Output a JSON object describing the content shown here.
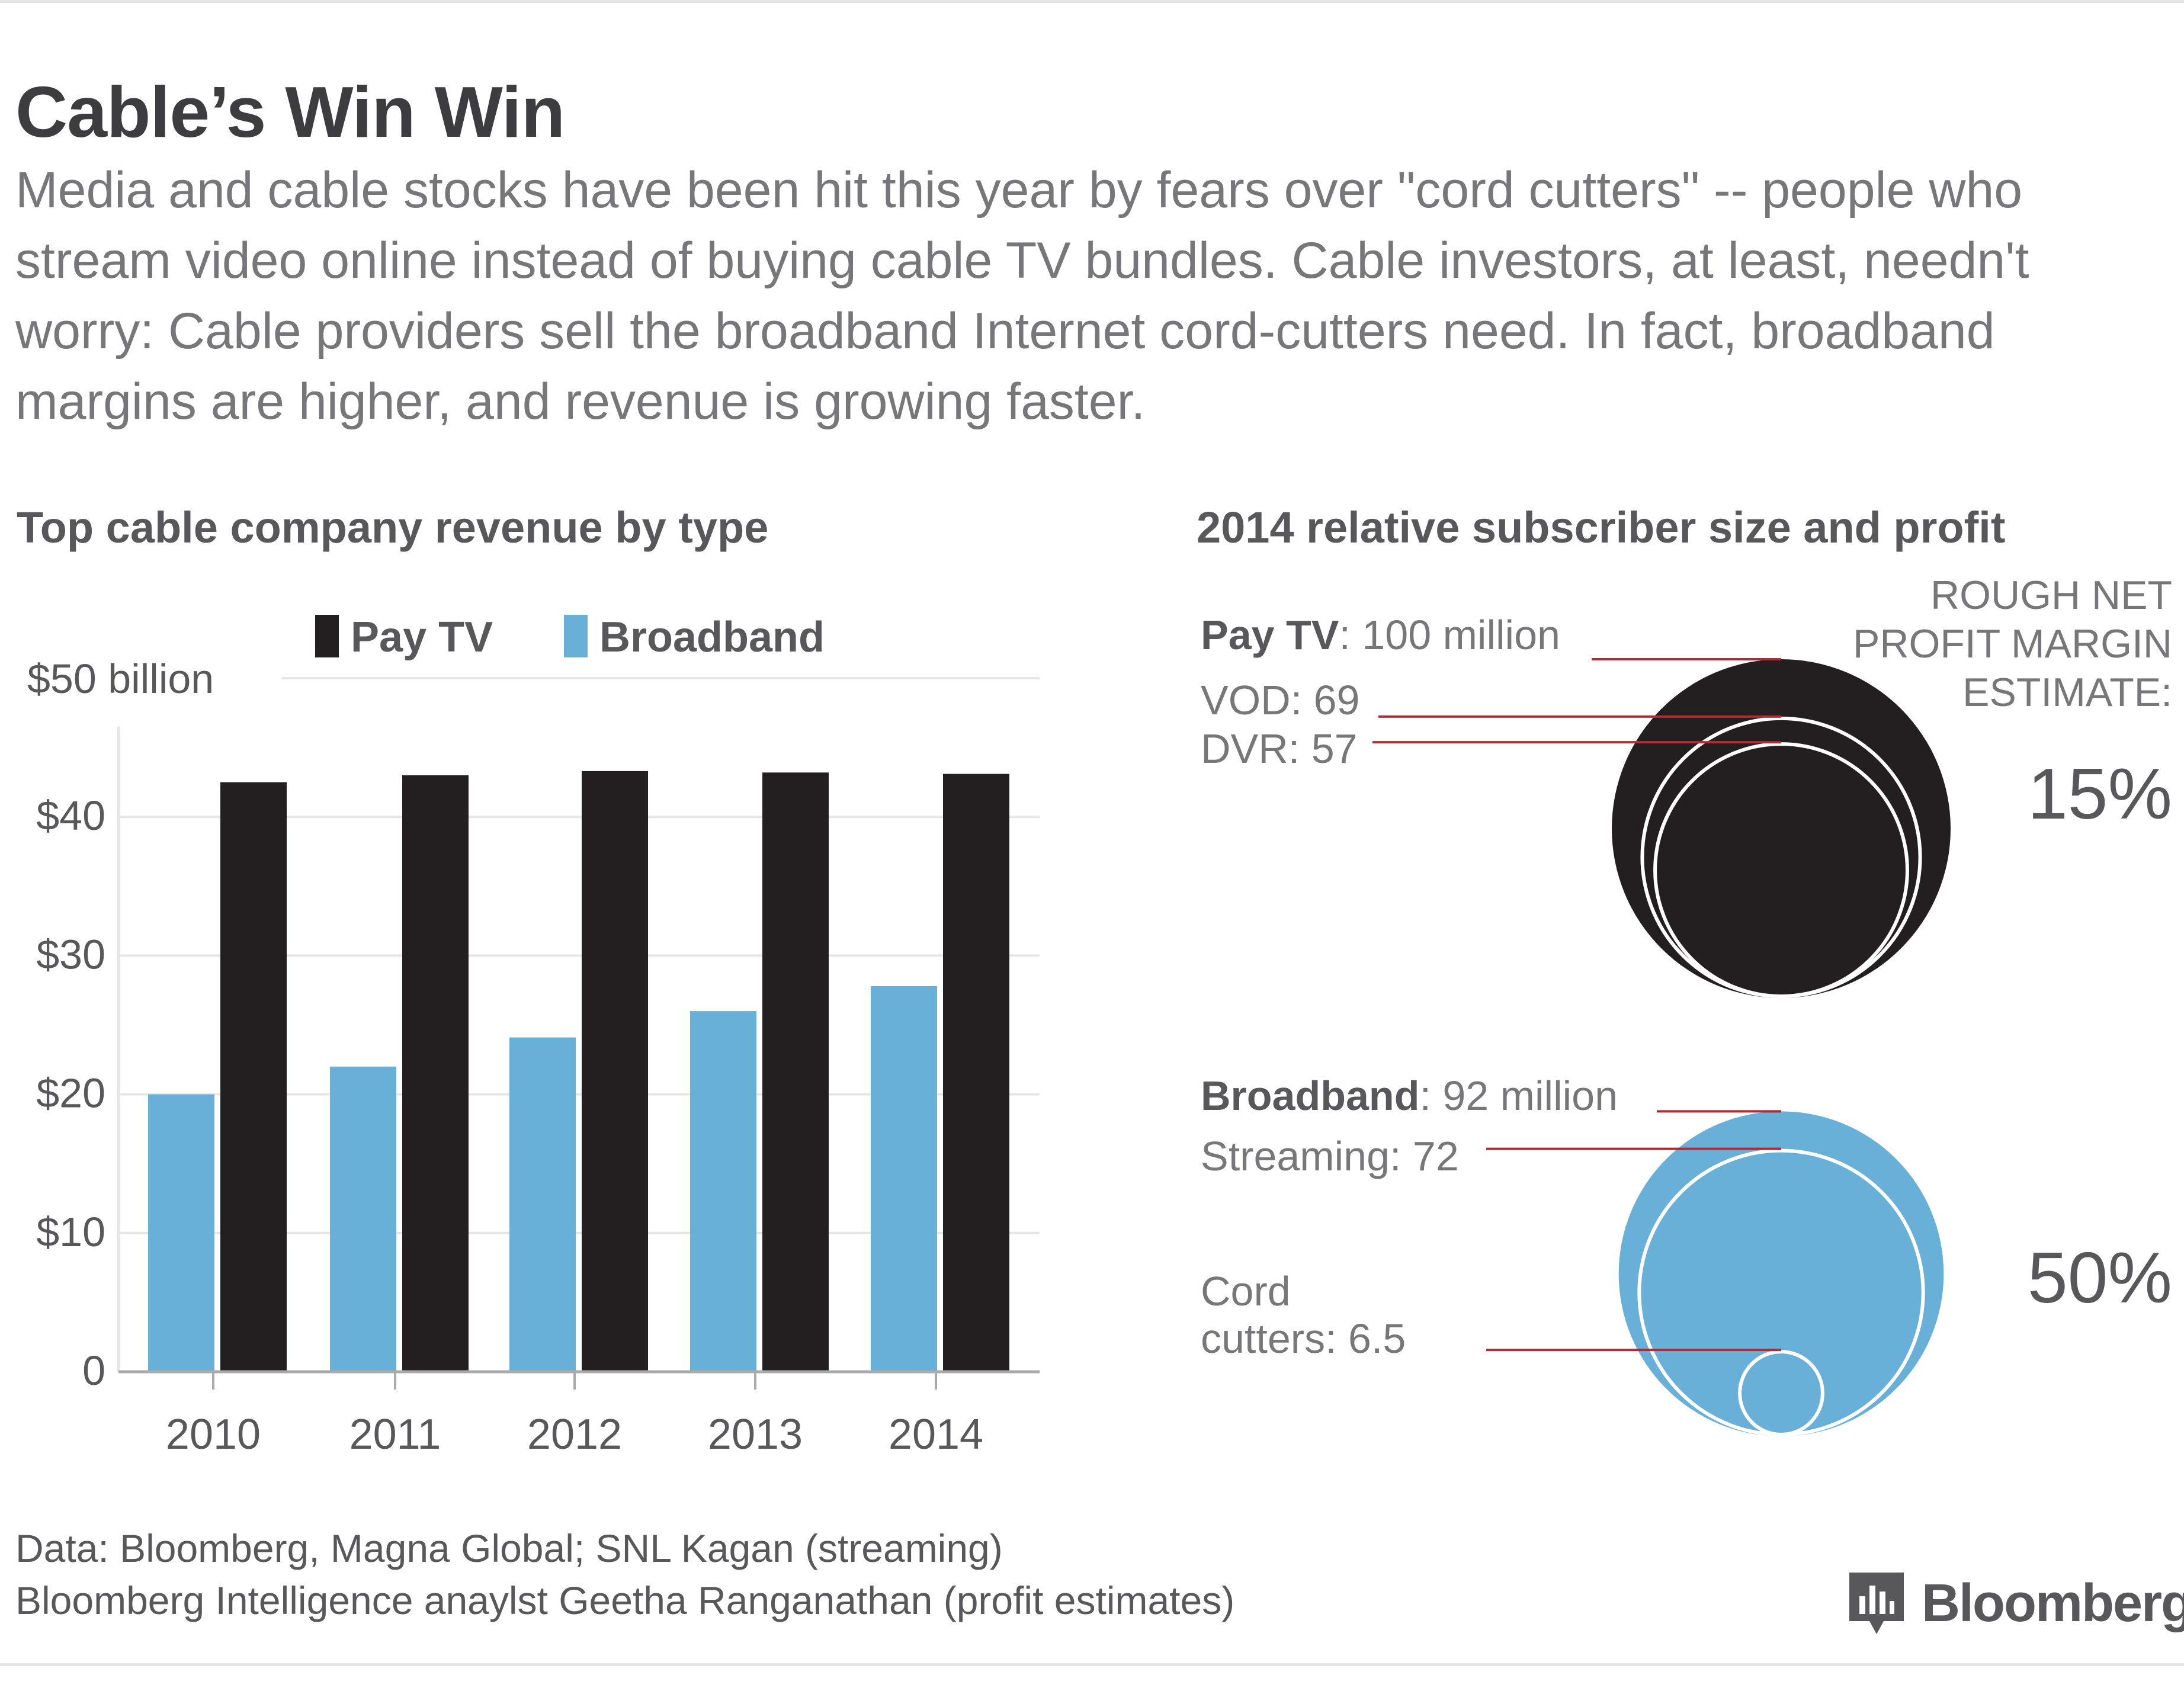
{
  "title": "Cable’s Win Win",
  "subtitle": "Media and cable stocks have been hit this year by fears over \"cord cutters\" -- people who stream video online instead of buying cable TV bundles. Cable investors, at least, needn't worry: Cable providers sell the broadband Internet cord-cutters need. In fact, broadband margins are higher, and revenue is growing faster.",
  "colors": {
    "pay_tv": "#231f20",
    "broadband": "#68b0d7",
    "leader_line": "#b22a33",
    "grid": "#e6e6e6",
    "text": "#58585b"
  },
  "chart_data": [
    {
      "type": "bar",
      "title": "Top cable company revenue by type",
      "categories": [
        "2010",
        "2011",
        "2012",
        "2013",
        "2014"
      ],
      "series": [
        {
          "name": "Pay TV",
          "values": [
            42.5,
            43.0,
            43.3,
            43.2,
            43.1
          ]
        },
        {
          "name": "Broadband",
          "values": [
            20.0,
            22.0,
            24.1,
            26.0,
            27.8
          ]
        }
      ],
      "ylim": [
        0,
        50
      ],
      "yticks": [
        {
          "value": 0,
          "label": "0"
        },
        {
          "value": 10,
          "label": "$10"
        },
        {
          "value": 20,
          "label": "$20"
        },
        {
          "value": 30,
          "label": "$30"
        },
        {
          "value": 40,
          "label": "$40"
        },
        {
          "value": 50,
          "label": "$50 billion"
        }
      ],
      "legend_position": "top",
      "grid": true
    },
    {
      "type": "bubble",
      "title": "2014 relative subscriber size and profit",
      "margin_header": "ROUGH NET PROFIT MARGIN ESTIMATE:",
      "groups": [
        {
          "name": "Pay TV",
          "color": "#231f20",
          "margin": "15%",
          "items": [
            {
              "bold": "Pay TV",
              "text": ": 100 million",
              "value": 100
            },
            {
              "bold": "",
              "text": "VOD: 69",
              "value": 69
            },
            {
              "bold": "",
              "text": "DVR: 57",
              "value": 57
            }
          ]
        },
        {
          "name": "Broadband",
          "color": "#68b0d7",
          "margin": "50%",
          "items": [
            {
              "bold": "Broadband",
              "text": ": 92 million",
              "value": 92
            },
            {
              "bold": "",
              "text": "Streaming: 72",
              "value": 72
            },
            {
              "bold": "",
              "text": "Cord",
              "text2": "cutters: 6.5",
              "value": 6.5
            }
          ]
        }
      ]
    }
  ],
  "source": {
    "line1": "Data: Bloomberg, Magna Global; SNL Kagan (streaming)",
    "line2": "Bloomberg Intelligence anaylst Geetha Ranganathan (profit estimates)"
  },
  "logo": {
    "text": "Bloomberg",
    "icon": "bloomberg-chart-icon"
  }
}
